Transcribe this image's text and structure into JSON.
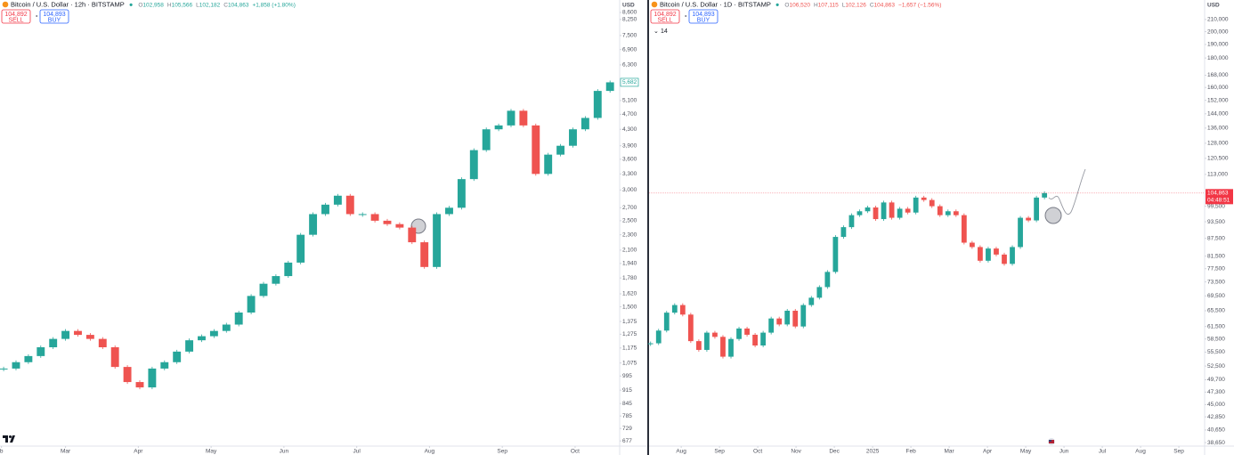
{
  "chart_data": [
    {
      "type": "candlestick",
      "title": "Bitcoin / U.S. Dollar · 12h · BITSTAMP",
      "ohlc": [
        [
          "O",
          "102,958"
        ],
        [
          "H",
          "105,566"
        ],
        [
          "L",
          "102,182"
        ],
        [
          "C",
          "104,863"
        ]
      ],
      "change": "+1,858 (+1.80%)",
      "change_color": "#26a69a",
      "sell": {
        "price": "104,892",
        "label": "SELL"
      },
      "buy": {
        "price": "104,893",
        "label": "BUY"
      },
      "axis_unit": "USD",
      "log_scale": true,
      "grid": false,
      "up_color": "#26a69a",
      "down_color": "#ef5350",
      "x": [
        0.15,
        0.32,
        0.49,
        0.66,
        0.83,
        1.0,
        1.17,
        1.34,
        1.51,
        1.68,
        1.85,
        2.02,
        2.19,
        2.36,
        2.53,
        2.7,
        2.87,
        3.04,
        3.21,
        3.38,
        3.55,
        3.72,
        3.89,
        4.06,
        4.23,
        4.4,
        4.57,
        4.74,
        4.91,
        5.08,
        5.25,
        5.42,
        5.59,
        5.76,
        5.93,
        6.1,
        6.27,
        6.44,
        6.61,
        6.78,
        6.95,
        7.12,
        7.29,
        7.46,
        7.63,
        7.8,
        7.97,
        8.14,
        8.31,
        8.48
      ],
      "values": [
        1040,
        1080,
        1120,
        1180,
        1240,
        1300,
        1270,
        1240,
        1180,
        1050,
        960,
        930,
        1040,
        1080,
        1150,
        1230,
        1260,
        1300,
        1350,
        1450,
        1600,
        1720,
        1800,
        1950,
        2300,
        2600,
        2750,
        2900,
        2600,
        2600,
        2500,
        2450,
        2400,
        2200,
        1900,
        2600,
        2700,
        3200,
        3800,
        4300,
        4400,
        4800,
        4400,
        3300,
        3700,
        3900,
        4300,
        4600,
        5400,
        5682
      ],
      "xlim": [
        0.1,
        8.6
      ],
      "ylim": [
        660,
        9260
      ],
      "xticks": [
        {
          "value": 0.12,
          "label": "b"
        },
        {
          "value": 1,
          "label": "Mar"
        },
        {
          "value": 2,
          "label": "Apr"
        },
        {
          "value": 3,
          "label": "May"
        },
        {
          "value": 4,
          "label": "Jun"
        },
        {
          "value": 5,
          "label": "Jul"
        },
        {
          "value": 6,
          "label": "Aug"
        },
        {
          "value": 7,
          "label": "Sep"
        },
        {
          "value": 8,
          "label": "Oct"
        }
      ],
      "yticks": [
        {
          "value": 8600,
          "label": "8,600"
        },
        {
          "value": 8250,
          "label": "8,250"
        },
        {
          "value": 7500,
          "label": "7,500"
        },
        {
          "value": 6900,
          "label": "6,900"
        },
        {
          "value": 6300,
          "label": "6,300"
        },
        {
          "value": 5100,
          "label": "5,100"
        },
        {
          "value": 4700,
          "label": "4,700"
        },
        {
          "value": 4300,
          "label": "4,300"
        },
        {
          "value": 3900,
          "label": "3,900"
        },
        {
          "value": 3600,
          "label": "3,600"
        },
        {
          "value": 3300,
          "label": "3,300"
        },
        {
          "value": 3000,
          "label": "3,000"
        },
        {
          "value": 2700,
          "label": "2,700"
        },
        {
          "value": 2500,
          "label": "2,500"
        },
        {
          "value": 2300,
          "label": "2,300"
        },
        {
          "value": 2100,
          "label": "2,100"
        },
        {
          "value": 1940,
          "label": "1,940"
        },
        {
          "value": 1780,
          "label": "1,780"
        },
        {
          "value": 1620,
          "label": "1,620"
        },
        {
          "value": 1500,
          "label": "1,500"
        },
        {
          "value": 1375,
          "label": "1,375"
        },
        {
          "value": 1275,
          "label": "1,275"
        },
        {
          "value": 1175,
          "label": "1,175"
        },
        {
          "value": 1075,
          "label": "1,075"
        },
        995,
        915,
        845,
        785,
        729,
        677
      ],
      "last_price": {
        "value": 5682,
        "label": "5,682"
      },
      "price_color": "#26a69a",
      "price_line": false
    },
    {
      "type": "candlestick",
      "title": "Bitcoin / U.S. Dollar · 1D · BITSTAMP",
      "ohlc": [
        [
          "O",
          "106,520"
        ],
        [
          "H",
          "107,115"
        ],
        [
          "L",
          "102,126"
        ],
        [
          "C",
          "104,863"
        ]
      ],
      "change": "−1,657 (−1.56%)",
      "change_color": "#ef5350",
      "sell": {
        "price": "104,892",
        "label": "SELL"
      },
      "buy": {
        "price": "104,893",
        "label": "BUY"
      },
      "indicator": "14",
      "axis_unit": "USD",
      "log_scale": true,
      "grid": false,
      "up_color": "#26a69a",
      "down_color": "#ef5350",
      "x": [
        -0.8,
        -0.59,
        -0.38,
        -0.17,
        0.04,
        0.25,
        0.46,
        0.67,
        0.88,
        1.09,
        1.3,
        1.51,
        1.72,
        1.93,
        2.14,
        2.35,
        2.56,
        2.77,
        2.98,
        3.19,
        3.4,
        3.61,
        3.82,
        4.03,
        4.24,
        4.45,
        4.66,
        4.87,
        5.08,
        5.29,
        5.5,
        5.71,
        5.92,
        6.13,
        6.34,
        6.55,
        6.76,
        6.97,
        7.18,
        7.39,
        7.6,
        7.81,
        8.02,
        8.23,
        8.44,
        8.65,
        8.86,
        9.07,
        9.28,
        9.49
      ],
      "values": [
        57500,
        60500,
        65000,
        67000,
        64500,
        58000,
        56000,
        60000,
        59000,
        54500,
        58500,
        61000,
        59500,
        57000,
        60000,
        63500,
        62000,
        65500,
        61500,
        67000,
        69000,
        72000,
        76500,
        88000,
        91500,
        96000,
        97500,
        99000,
        94500,
        101000,
        95000,
        98500,
        97000,
        103000,
        102000,
        99500,
        96000,
        97500,
        96000,
        86000,
        84500,
        80000,
        84000,
        82000,
        79000,
        84500,
        95000,
        94000,
        103000,
        104863
      ],
      "xlim": [
        -0.84,
        13.65
      ],
      "ylim": [
        38250,
        227000
      ],
      "xticks": [
        {
          "value": 0,
          "label": "Aug"
        },
        {
          "value": 1,
          "label": "Sep"
        },
        {
          "value": 2,
          "label": "Oct"
        },
        {
          "value": 3,
          "label": "Nov"
        },
        {
          "value": 4,
          "label": "Dec"
        },
        {
          "value": 5,
          "label": "2025"
        },
        {
          "value": 6,
          "label": "Feb"
        },
        {
          "value": 7,
          "label": "Mar"
        },
        {
          "value": 8,
          "label": "Apr"
        },
        {
          "value": 9,
          "label": "May"
        },
        {
          "value": 10,
          "label": "Jun"
        },
        {
          "value": 11,
          "label": "Jul"
        },
        {
          "value": 12,
          "label": "Aug"
        },
        {
          "value": 13,
          "label": "Sep"
        }
      ],
      "yticks": [
        {
          "value": 210000,
          "label": "210,000"
        },
        {
          "value": 200000,
          "label": "200,000"
        },
        {
          "value": 190000,
          "label": "190,000"
        },
        {
          "value": 180000,
          "label": "180,000"
        },
        {
          "value": 168000,
          "label": "168,000"
        },
        {
          "value": 160000,
          "label": "160,000"
        },
        {
          "value": 152000,
          "label": "152,000"
        },
        {
          "value": 144000,
          "label": "144,000"
        },
        {
          "value": 136000,
          "label": "136,000"
        },
        {
          "value": 128000,
          "label": "128,000"
        },
        {
          "value": 120500,
          "label": "120,500"
        },
        {
          "value": 113000,
          "label": "113,000"
        },
        {
          "value": 99500,
          "label": "99,500"
        },
        {
          "value": 93500,
          "label": "93,500"
        },
        {
          "value": 87500,
          "label": "87,500"
        },
        {
          "value": 81500,
          "label": "81,500"
        },
        {
          "value": 77500,
          "label": "77,500"
        },
        {
          "value": 73500,
          "label": "73,500"
        },
        {
          "value": 69500,
          "label": "69,500"
        },
        {
          "value": 65500,
          "label": "65,500"
        },
        {
          "value": 61500,
          "label": "61,500"
        },
        {
          "value": 58500,
          "label": "58,500"
        },
        {
          "value": 55500,
          "label": "55,500"
        },
        {
          "value": 52500,
          "label": "52,500"
        },
        {
          "value": 49700,
          "label": "49,700"
        },
        {
          "value": 47300,
          "label": "47,300"
        },
        {
          "value": 45000,
          "label": "45,000"
        },
        {
          "value": 42850,
          "label": "42,850"
        },
        {
          "value": 40650,
          "label": "40,650"
        },
        {
          "value": 38650,
          "label": "38,650"
        }
      ],
      "last_price": {
        "value": 104863,
        "label": "104,863"
      },
      "countdown": "04:48:51",
      "price_color": "#f23645",
      "price_line": true
    }
  ]
}
